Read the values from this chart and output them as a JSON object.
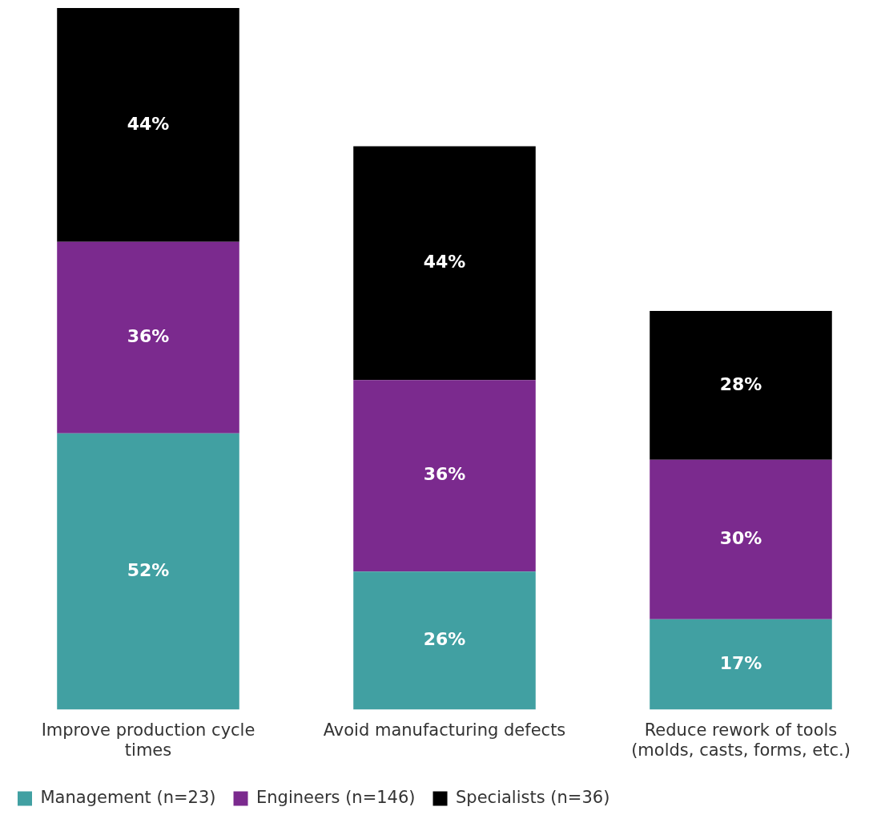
{
  "chart_data": {
    "type": "bar",
    "stacked": true,
    "legend": "bottom left",
    "grid": false,
    "tick_labels": "x",
    "categories": [
      "Improve production cycle times",
      "Avoid manufacturing defects",
      "Reduce rework of tools (molds, casts, forms, etc.)"
    ],
    "series": [
      {
        "name": "Management (n=23)",
        "color": "#41a0a2",
        "values": [
          52,
          26,
          17
        ],
        "value_labels": [
          "52%",
          "26%",
          "17%"
        ]
      },
      {
        "name": "Engineers (n=146)",
        "color": "#7b2a8e",
        "values": [
          36,
          36,
          30
        ],
        "value_labels": [
          "36%",
          "36%",
          "30%"
        ]
      },
      {
        "name": "Specialists (n=36)",
        "color": "#000000",
        "values": [
          44,
          44,
          28
        ],
        "value_labels": [
          "44%",
          "44%",
          "28%"
        ]
      }
    ]
  }
}
